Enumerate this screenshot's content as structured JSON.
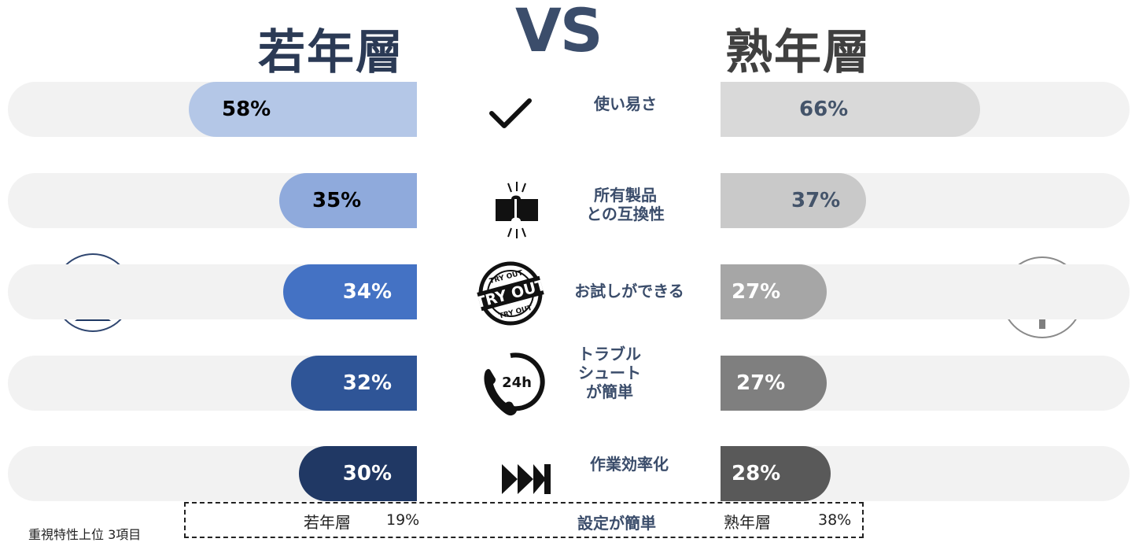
{
  "header": {
    "left_title": "若年層",
    "vs": "VS",
    "right_title": "熟年層"
  },
  "chart_data": {
    "type": "bar",
    "layout": "butterfly",
    "categories": [
      "使い易さ",
      "所有製品\nとの互換性",
      "お試しができる",
      "トラブル\nシュート\nが簡単",
      "作業効率化"
    ],
    "series": [
      {
        "name": "若年層",
        "values": [
          58,
          35,
          34,
          32,
          30
        ],
        "labels": [
          "58%",
          "35%",
          "34%",
          "32%",
          "30%"
        ],
        "colors": [
          "#b4c7e7",
          "#8faadc",
          "#4472c4",
          "#2f5597",
          "#203864"
        ],
        "label_colors": [
          "#000000",
          "#000000",
          "#ffffff",
          "#ffffff",
          "#ffffff"
        ]
      },
      {
        "name": "熟年層",
        "values": [
          66,
          37,
          27,
          27,
          28
        ],
        "labels": [
          "66%",
          "37%",
          "27%",
          "27%",
          "28%"
        ],
        "colors": [
          "#d9d9d9",
          "#c9c9c9",
          "#a6a6a6",
          "#7f7f7f",
          "#595959"
        ],
        "label_colors": [
          "#44546a",
          "#44546a",
          "#ffffff",
          "#ffffff",
          "#ffffff"
        ]
      }
    ],
    "icons": [
      "check-icon",
      "puzzle-icon",
      "try-out-stamp-icon",
      "phone-24h-icon",
      "fast-forward-icon"
    ]
  },
  "footer": {
    "left_group": "若年層",
    "left_value": "19%",
    "category": "設定が簡単",
    "right_group": "熟年層",
    "right_value": "38%",
    "note": "重視特性上位 3項目"
  },
  "colors": {
    "navy": "#2b3a55",
    "tree_gray": "#7f7f7f",
    "sprout_navy": "#1f3864"
  }
}
